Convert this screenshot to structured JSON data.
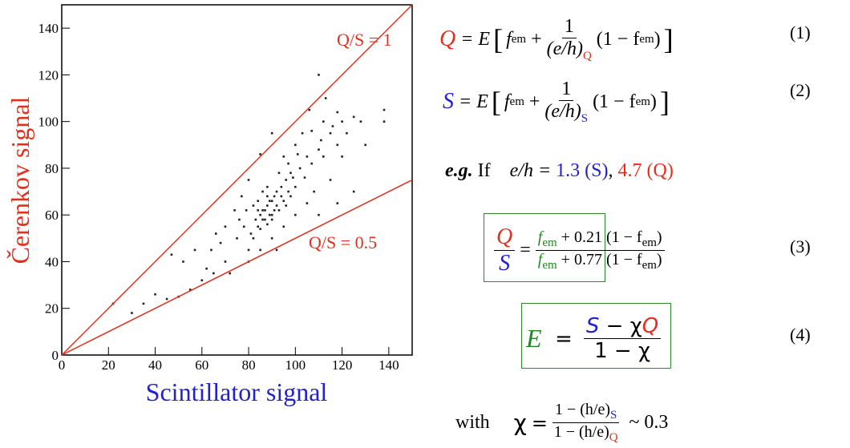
{
  "chart_data": {
    "type": "scatter",
    "x_label": "Scintillator signal",
    "y_label": "Čerenkov signal",
    "xlim": [
      0,
      150
    ],
    "ylim": [
      0,
      150
    ],
    "xticks": [
      0,
      20,
      40,
      60,
      80,
      100,
      120,
      140
    ],
    "yticks": [
      0,
      20,
      40,
      60,
      80,
      100,
      120,
      140
    ],
    "color": "#222222",
    "line_color": "#e0301e",
    "reference_lines": [
      {
        "label": "Q/S = 1",
        "slope": 1
      },
      {
        "label": "Q/S = 0.5",
        "slope": 0.5
      }
    ],
    "x": [
      22,
      30,
      35,
      40,
      45,
      50,
      55,
      60,
      47,
      52,
      57,
      62,
      65,
      70,
      75,
      72,
      78,
      80,
      82,
      84,
      85,
      86,
      87,
      88,
      89,
      90,
      91,
      92,
      93,
      94,
      95,
      96,
      97,
      98,
      100,
      102,
      104,
      105,
      107,
      110,
      112,
      115,
      118,
      120,
      122,
      125,
      113,
      106,
      110,
      90,
      85,
      80,
      77,
      74,
      70,
      68,
      66,
      64,
      100,
      95,
      103,
      108,
      115,
      120,
      130,
      128,
      138,
      138,
      125,
      118,
      100,
      95,
      90,
      85,
      80,
      92,
      105,
      110,
      88,
      86,
      84,
      82,
      83,
      85,
      88,
      90,
      92,
      94,
      96,
      98,
      87,
      89,
      91,
      86,
      84,
      88,
      90,
      76,
      79,
      81,
      93,
      97,
      101,
      99,
      111,
      116,
      118,
      112,
      107
    ],
    "y": [
      22,
      18,
      22,
      26,
      24,
      25,
      28,
      32,
      43,
      40,
      45,
      37,
      35,
      40,
      50,
      35,
      55,
      45,
      50,
      55,
      60,
      62,
      58,
      64,
      66,
      60,
      68,
      70,
      62,
      72,
      66,
      75,
      70,
      78,
      72,
      80,
      76,
      85,
      82,
      88,
      85,
      95,
      90,
      100,
      95,
      102,
      110,
      105,
      120,
      95,
      86,
      75,
      68,
      62,
      55,
      48,
      52,
      45,
      90,
      85,
      95,
      70,
      75,
      85,
      90,
      100,
      100,
      105,
      70,
      65,
      60,
      55,
      50,
      45,
      40,
      45,
      65,
      60,
      72,
      70,
      66,
      64,
      58,
      54,
      56,
      58,
      64,
      68,
      64,
      68,
      62,
      60,
      62,
      58,
      62,
      68,
      66,
      58,
      62,
      52,
      78,
      82,
      86,
      76,
      92,
      98,
      104,
      100,
      96
    ]
  },
  "formulas": {
    "q": {
      "lhs": "Q",
      "eq": "= E",
      "open": "[",
      "f": "f",
      "em": "em",
      "plus": "+",
      "num": "1",
      "den": "(e/h)",
      "den_sub": "Q",
      "tail": "(1 − f",
      "tail_sub": "em",
      "tail_end": ")",
      "close": "]",
      "number": "(1)"
    },
    "s": {
      "lhs": "S",
      "eq": "= E",
      "open": "[",
      "f": "f",
      "em": "em",
      "plus": "+",
      "num": "1",
      "den": "(e/h)",
      "den_sub": "S",
      "tail": "(1 − f",
      "tail_sub": "em",
      "tail_end": ")",
      "close": "]",
      "number": "(2)"
    },
    "example": {
      "eg": "e.g.",
      "if": "If",
      "eh": "e/h =",
      "s_val": "1.3 (S)",
      "comma": ",",
      "q_val": "4.7 (Q)"
    },
    "ratio": {
      "num_lhs": "Q",
      "den_lhs": "S",
      "eq": "=",
      "f1": "f",
      "sub1": "em",
      "rest1": "+ 0.21 (1 − f",
      "sub1b": "em",
      "end1": ")",
      "f2": "f",
      "sub2": "em",
      "rest2": "+ 0.77 (1 − f",
      "sub2b": "em",
      "end2": ")",
      "number": "(3)"
    },
    "energy": {
      "lhs": "E",
      "eq": "=",
      "num_s": "S",
      "num_mid": "− χ",
      "num_q": "Q",
      "den": "1 − χ",
      "number": "(4)"
    },
    "chi": {
      "with": "with",
      "chi": "χ",
      "eq": "=",
      "num": "1 − (h/e)",
      "num_sub": "S",
      "den": "1 − (h/e)",
      "den_sub": "Q",
      "approx": "~ 0.3"
    }
  }
}
